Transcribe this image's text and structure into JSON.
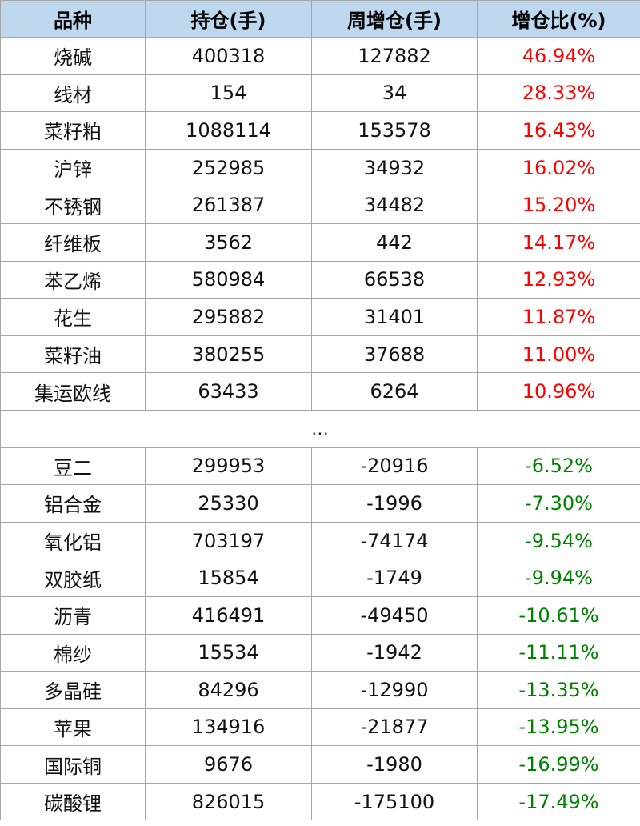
{
  "table": {
    "headers": [
      "品种",
      "持仓(手)",
      "周增仓(手)",
      "增仓比(%)"
    ],
    "top_rows": [
      {
        "name": "烧碱",
        "oi": "400318",
        "weekly_add": "127882",
        "ratio": "46.94%"
      },
      {
        "name": "线材",
        "oi": "154",
        "weekly_add": "34",
        "ratio": "28.33%"
      },
      {
        "name": "菜籽粕",
        "oi": "1088114",
        "weekly_add": "153578",
        "ratio": "16.43%"
      },
      {
        "name": "沪锌",
        "oi": "252985",
        "weekly_add": "34932",
        "ratio": "16.02%"
      },
      {
        "name": "不锈钢",
        "oi": "261387",
        "weekly_add": "34482",
        "ratio": "15.20%"
      },
      {
        "name": "纤维板",
        "oi": "3562",
        "weekly_add": "442",
        "ratio": "14.17%"
      },
      {
        "name": "苯乙烯",
        "oi": "580984",
        "weekly_add": "66538",
        "ratio": "12.93%"
      },
      {
        "name": "花生",
        "oi": "295882",
        "weekly_add": "31401",
        "ratio": "11.87%"
      },
      {
        "name": "菜籽油",
        "oi": "380255",
        "weekly_add": "37688",
        "ratio": "11.00%"
      },
      {
        "name": "集运欧线",
        "oi": "63433",
        "weekly_add": "6264",
        "ratio": "10.96%"
      }
    ],
    "ellipsis": "...",
    "bottom_rows": [
      {
        "name": "豆二",
        "oi": "299953",
        "weekly_add": "-20916",
        "ratio": "-6.52%"
      },
      {
        "name": "铝合金",
        "oi": "25330",
        "weekly_add": "-1996",
        "ratio": "-7.30%"
      },
      {
        "name": "氧化铝",
        "oi": "703197",
        "weekly_add": "-74174",
        "ratio": "-9.54%"
      },
      {
        "name": "双胶纸",
        "oi": "15854",
        "weekly_add": "-1749",
        "ratio": "-9.94%"
      },
      {
        "name": "沥青",
        "oi": "416491",
        "weekly_add": "-49450",
        "ratio": "-10.61%"
      },
      {
        "name": "棉纱",
        "oi": "15534",
        "weekly_add": "-1942",
        "ratio": "-11.11%"
      },
      {
        "name": "多晶硅",
        "oi": "84296",
        "weekly_add": "-12990",
        "ratio": "-13.35%"
      },
      {
        "name": "苹果",
        "oi": "134916",
        "weekly_add": "-21877",
        "ratio": "-13.95%"
      },
      {
        "name": "国际铜",
        "oi": "9676",
        "weekly_add": "-1980",
        "ratio": "-16.99%"
      },
      {
        "name": "碳酸锂",
        "oi": "826015",
        "weekly_add": "-175100",
        "ratio": "-17.49%"
      }
    ]
  },
  "colors": {
    "header_bg": "#bdd7ee",
    "positive": "#ff0000",
    "negative": "#008000",
    "border": "#a6a6a6"
  }
}
